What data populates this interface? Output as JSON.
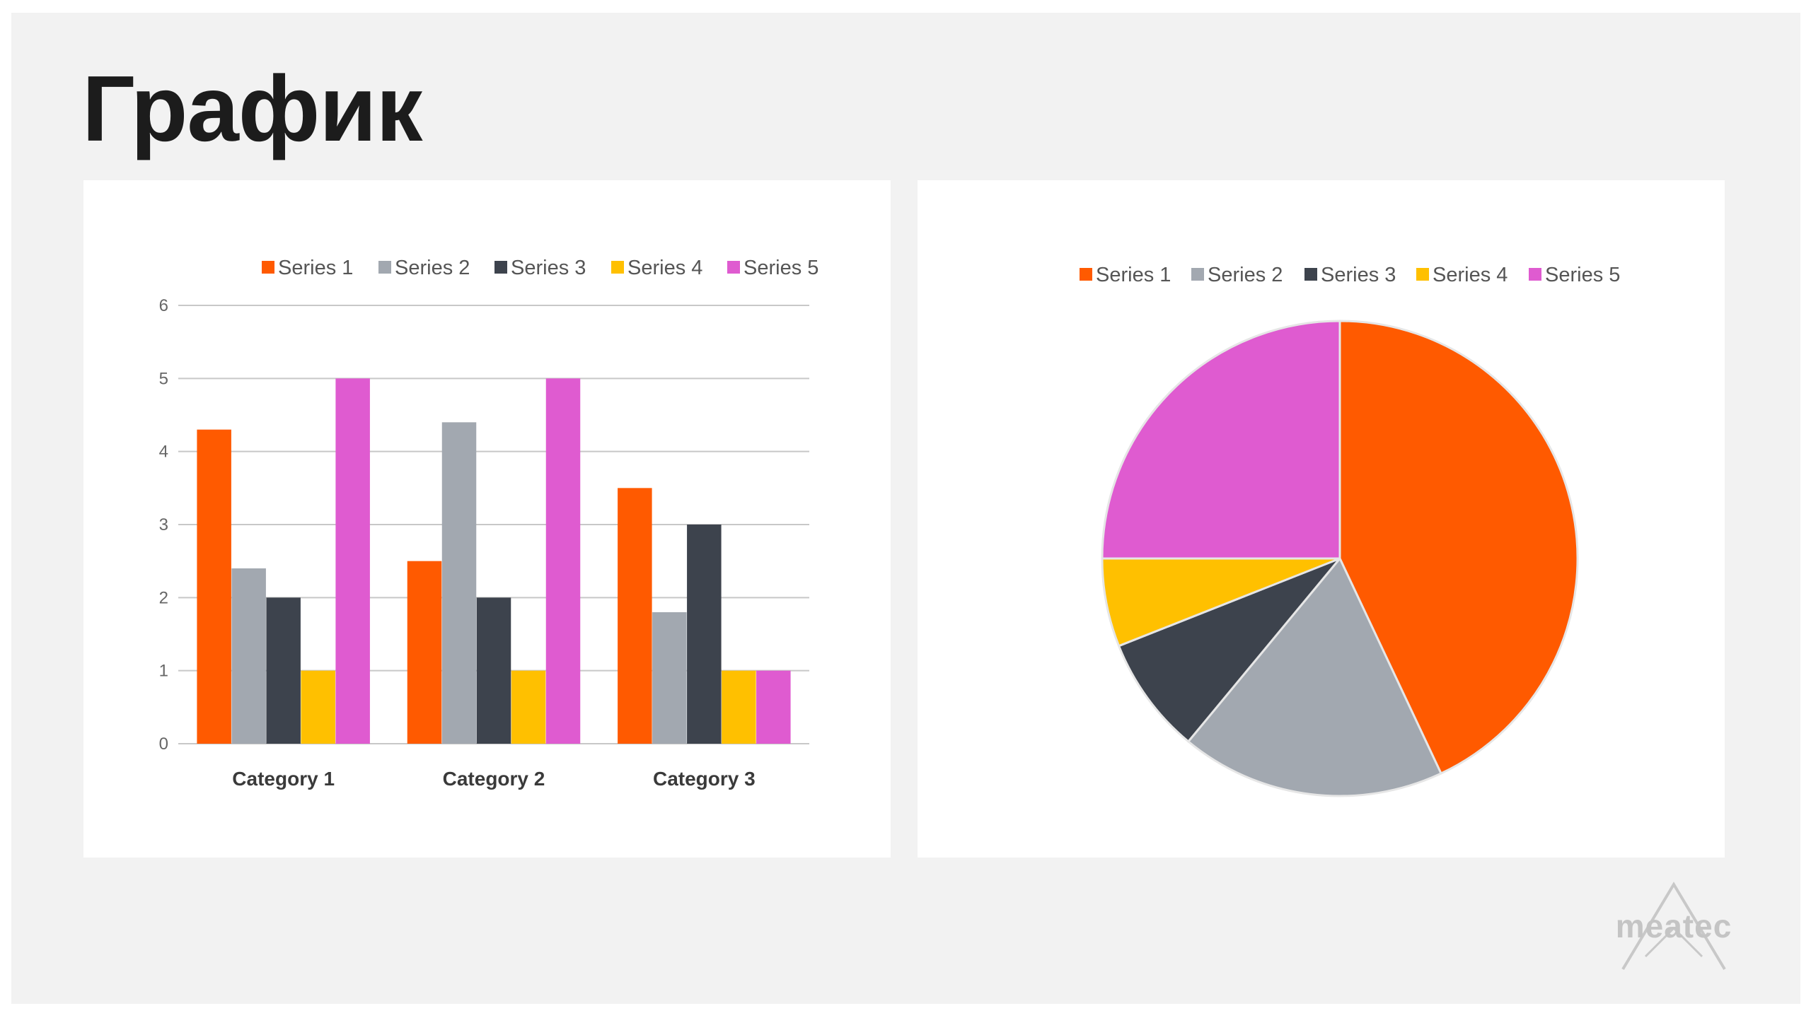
{
  "slide": {
    "title": "График",
    "logo_text": "meatec",
    "background": "#f2f2f2"
  },
  "colors": {
    "series": [
      "#ff5a00",
      "#a2a8b0",
      "#3d434d",
      "#ffc000",
      "#df5bd0"
    ],
    "grid": "#c8c8c8",
    "pie_border": "#e6e6e6"
  },
  "chart_data": [
    {
      "type": "bar",
      "categories": [
        "Category 1",
        "Category 2",
        "Category 3"
      ],
      "series": [
        {
          "name": "Series 1",
          "values": [
            4.3,
            2.5,
            3.5
          ]
        },
        {
          "name": "Series 2",
          "values": [
            2.4,
            4.4,
            1.8
          ]
        },
        {
          "name": "Series 3",
          "values": [
            2,
            2,
            3
          ]
        },
        {
          "name": "Series 4",
          "values": [
            1,
            1,
            1
          ]
        },
        {
          "name": "Series 5",
          "values": [
            5,
            5,
            1
          ]
        }
      ],
      "ylim": [
        0,
        6
      ],
      "yticks": [
        0,
        1,
        2,
        3,
        4,
        5,
        6
      ],
      "grid": true,
      "legend": "top",
      "title": "",
      "xlabel": "",
      "ylabel": ""
    },
    {
      "type": "pie",
      "labels": [
        "Series 1",
        "Series 2",
        "Series 3",
        "Series 4",
        "Series 5"
      ],
      "values": [
        43,
        18,
        8,
        6,
        25
      ],
      "legend": "top",
      "title": ""
    }
  ]
}
